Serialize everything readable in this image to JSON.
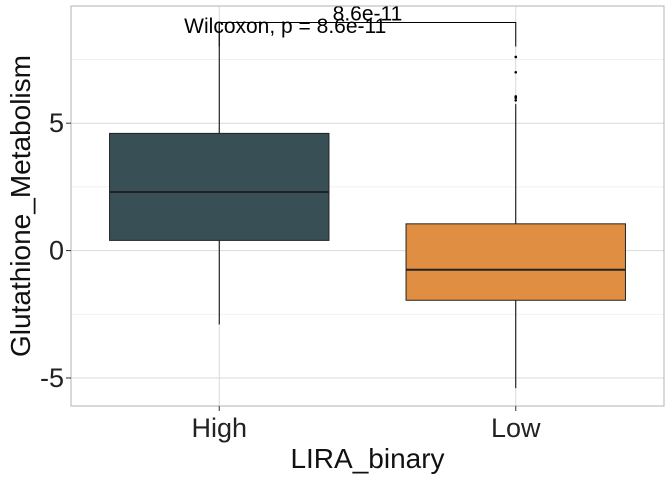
{
  "chart_data": {
    "type": "box",
    "xlabel": "LIRA_binary",
    "ylabel": "Glutathione_Metabolism",
    "categories": [
      "High",
      "Low"
    ],
    "ylim": [
      -6.1,
      9.6
    ],
    "yticks": [
      -5,
      0,
      5
    ],
    "ytick_labels": [
      "-5",
      "0",
      "5"
    ],
    "grid": true,
    "legend": "none",
    "boxes": [
      {
        "category": "High",
        "min": -2.9,
        "q1": 0.4,
        "median": 2.3,
        "q3": 4.6,
        "max": 8.9,
        "outliers": [],
        "color": "#374f55"
      },
      {
        "category": "Low",
        "min": -5.4,
        "q1": -1.95,
        "median": -0.75,
        "q3": 1.05,
        "max": 5.75,
        "outliers": [
          5.9,
          6.0,
          6.05,
          7.0,
          7.6
        ],
        "color": "#e08e41"
      }
    ],
    "comparison": {
      "groups": [
        "High",
        "Low"
      ],
      "bracket_y": 8.95,
      "bracket_label": "8.6e-11",
      "test_label": "Wilcoxon, p = 8.6e-11",
      "test_label_y": 8.55,
      "test_label_x": "High"
    }
  }
}
